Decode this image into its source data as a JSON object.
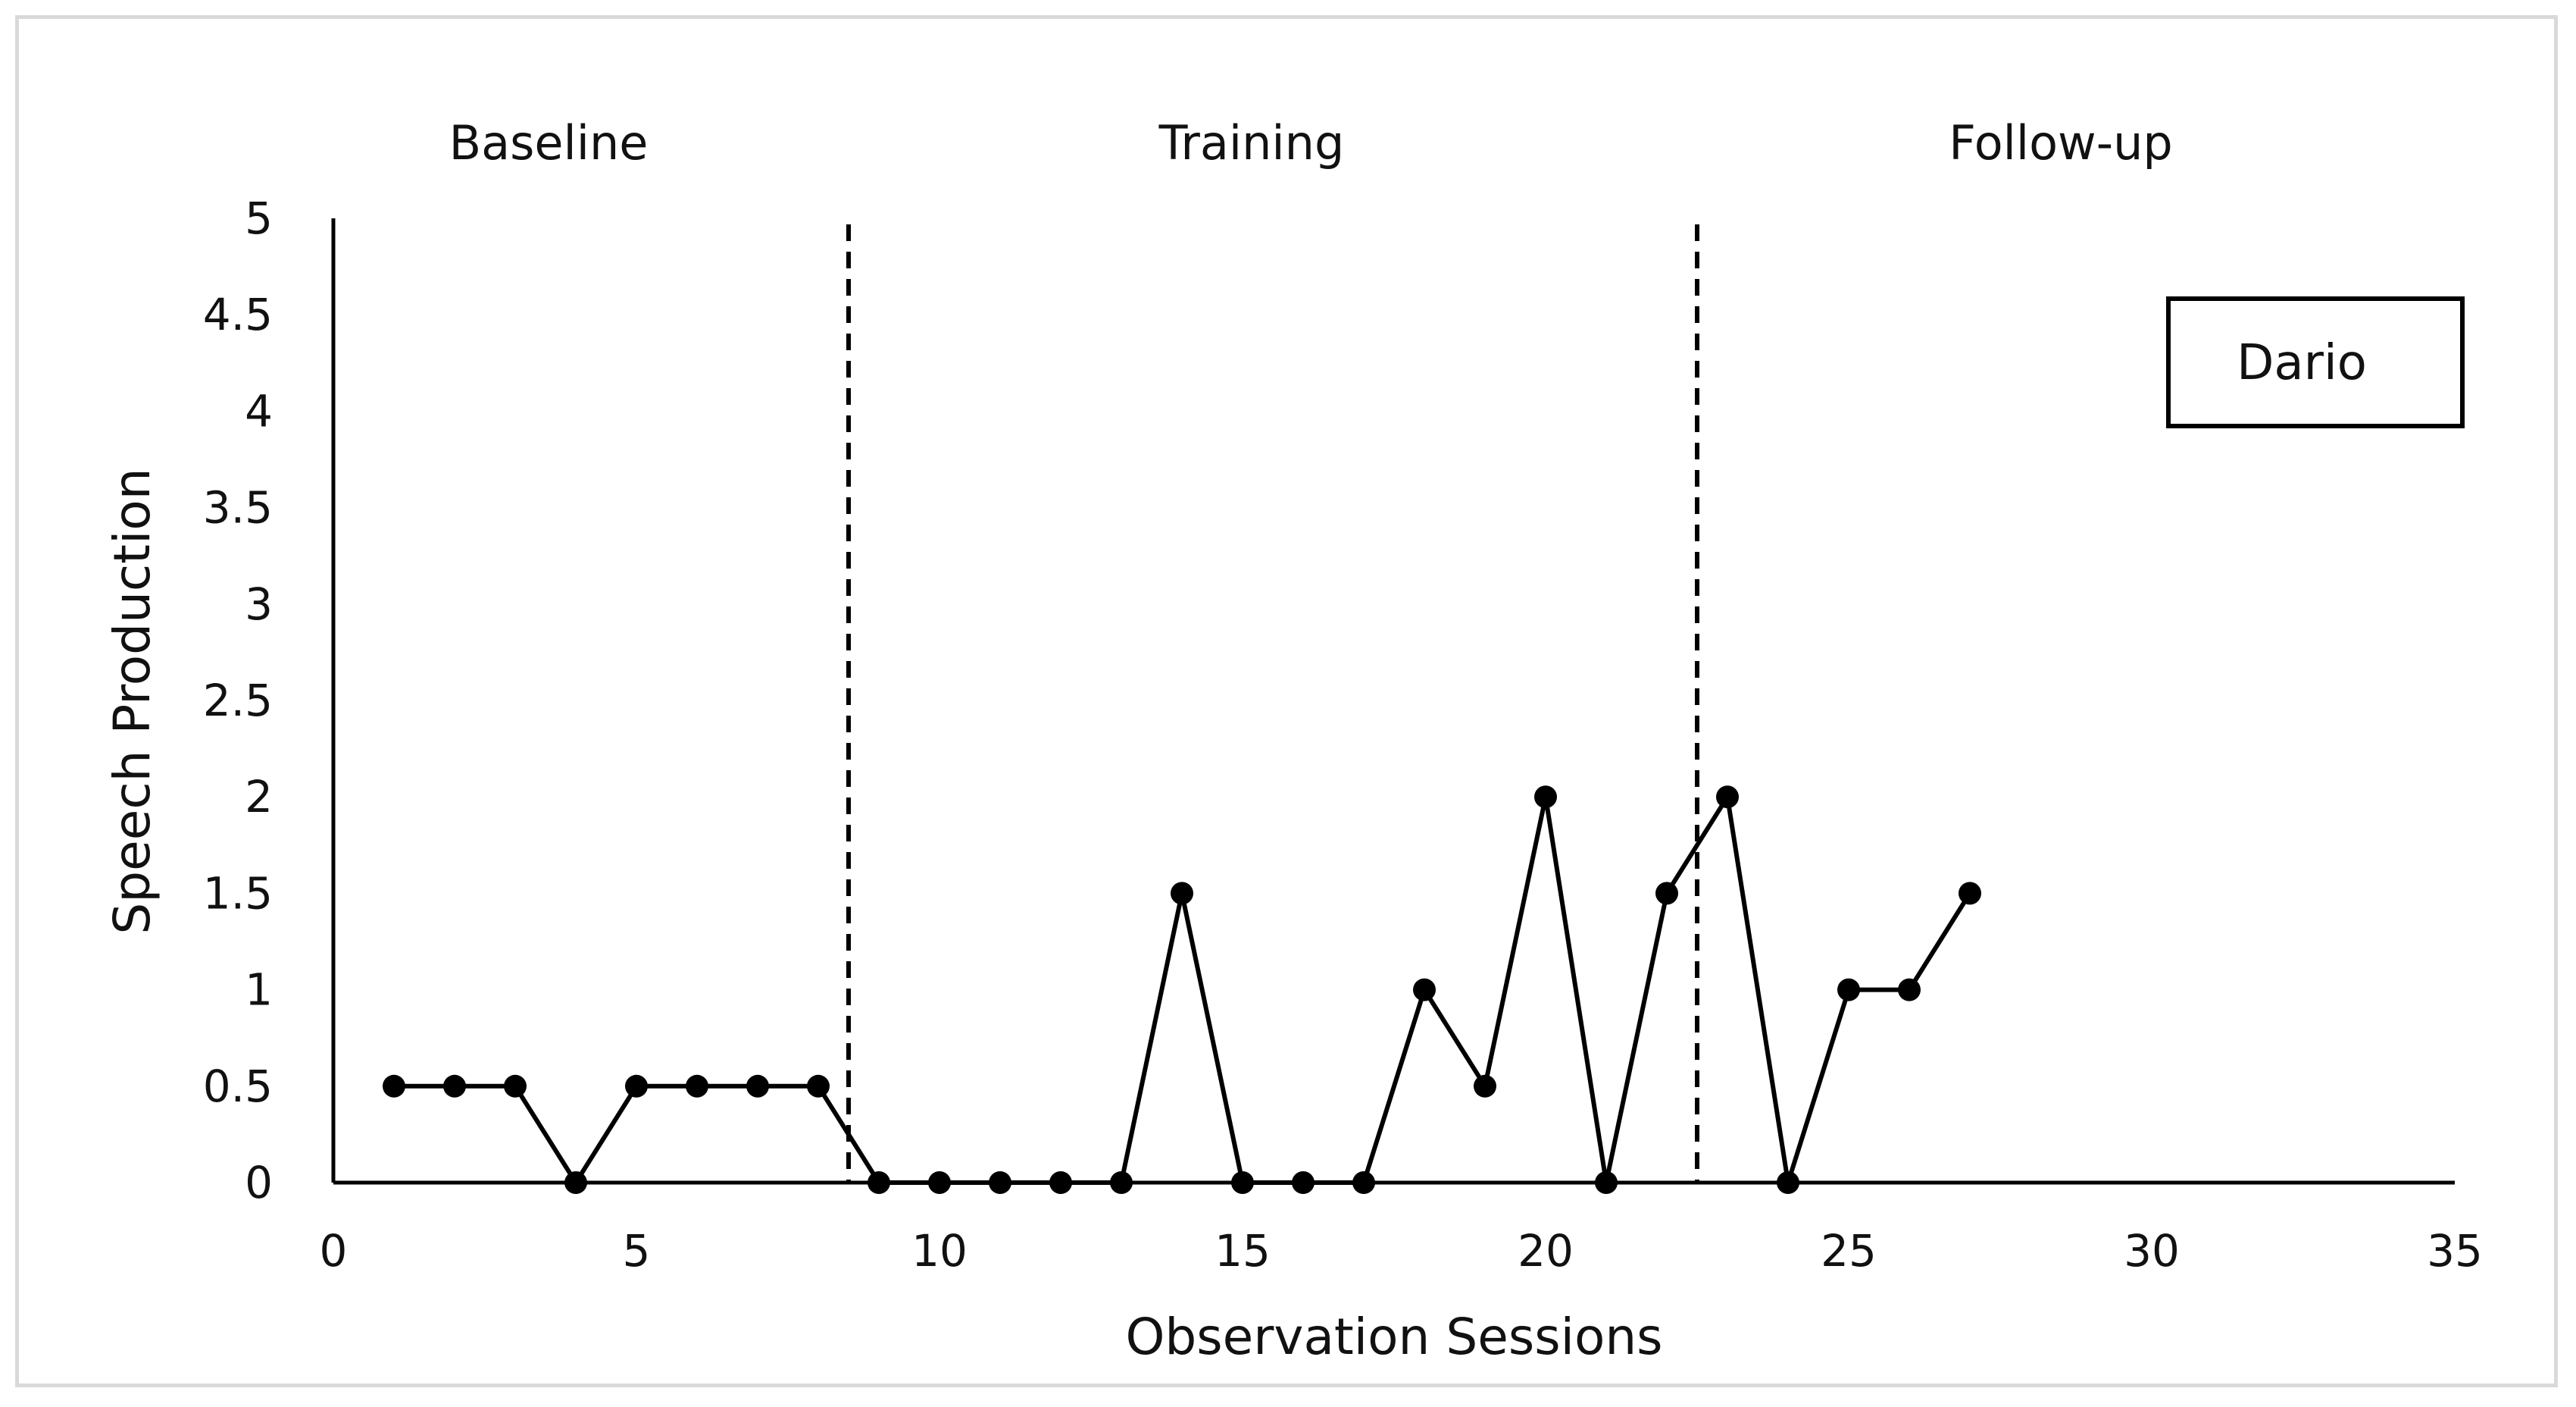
{
  "chart_data": {
    "type": "line",
    "xlabel": "Observation Sessions",
    "ylabel": "Speech Production",
    "xlim": [
      0,
      35
    ],
    "ylim": [
      0,
      5
    ],
    "x_ticks": [
      "0",
      "5",
      "10",
      "15",
      "20",
      "25",
      "30",
      "35"
    ],
    "y_ticks": [
      "0",
      "0.5",
      "1",
      "1.5",
      "2",
      "2.5",
      "3",
      "3.5",
      "4",
      "4.5",
      "5"
    ],
    "grid": false,
    "legend_placement": "top-right",
    "legend_label": "Dario",
    "phases": [
      {
        "label": "Baseline",
        "start": 0,
        "end": 8.5
      },
      {
        "label": "Training",
        "start": 8.5,
        "end": 22.5
      },
      {
        "label": "Follow-up",
        "start": 22.5,
        "end": 35
      }
    ],
    "phase_dividers": [
      8.5,
      22.5
    ],
    "line_color": "#000000",
    "segments": [
      {
        "x": [
          1,
          2,
          3,
          4,
          5,
          6,
          7,
          8,
          9,
          10,
          11,
          12,
          13,
          14,
          15,
          16,
          17,
          18,
          19,
          20,
          21,
          22,
          23,
          24,
          25,
          26,
          27
        ],
        "y": [
          0.5,
          0.5,
          0.5,
          0,
          0.5,
          0.5,
          0.5,
          0.5,
          0,
          0,
          0,
          0,
          0,
          1.5,
          0,
          0,
          0,
          1,
          0.5,
          2,
          0,
          1.5,
          2,
          0,
          1,
          1,
          1.5
        ]
      }
    ]
  }
}
